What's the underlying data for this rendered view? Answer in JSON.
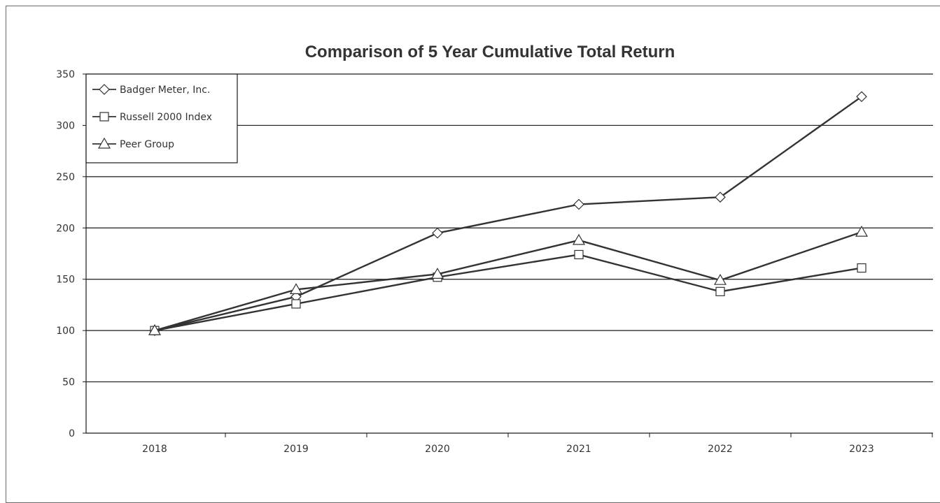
{
  "chart_data": {
    "type": "line",
    "title": "Comparison of 5 Year Cumulative Total Return",
    "xlabel": "",
    "ylabel": "",
    "categories": [
      "2018",
      "2019",
      "2020",
      "2021",
      "2022",
      "2023"
    ],
    "y_ticks": [
      "0",
      "50",
      "100",
      "150",
      "200",
      "250",
      "300",
      "350"
    ],
    "ylim": [
      0,
      350
    ],
    "grid": "horizontal",
    "legend_position": "top-left",
    "series": [
      {
        "name": "Badger Meter, Inc.",
        "marker": "diamond",
        "values": [
          100,
          133,
          195,
          223,
          230,
          328
        ]
      },
      {
        "name": "Russell 2000 Index",
        "marker": "square",
        "values": [
          100,
          126,
          152,
          174,
          138,
          161
        ]
      },
      {
        "name": "Peer Group",
        "marker": "triangle",
        "values": [
          100,
          140,
          155,
          188,
          149,
          196
        ]
      }
    ],
    "colors": {
      "line": "#333333",
      "grid": "#1a1a1a",
      "marker_fill": "#ffffff"
    }
  }
}
